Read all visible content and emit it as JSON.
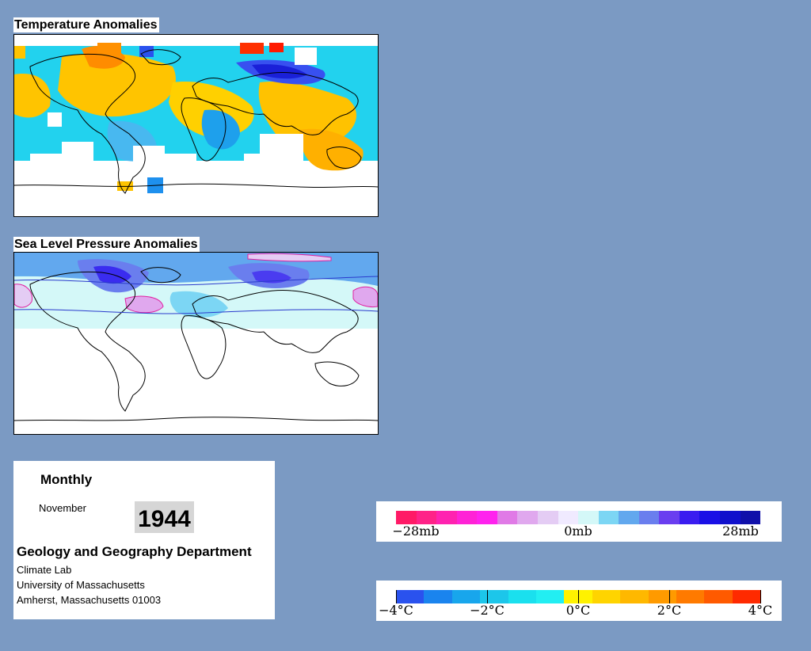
{
  "temperature_map": {
    "title": "Temperature Anomalies"
  },
  "pressure_map": {
    "title": "Sea Level Pressure Anomalies"
  },
  "info": {
    "period": "Monthly",
    "month": "November",
    "year": "1944",
    "department": "Geology and Geography Department",
    "lab": "Climate Lab",
    "university": "University of Massachusetts",
    "address": "Amherst, Massachusetts 01003"
  },
  "pressure_legend": {
    "labels": [
      "−28mb",
      "0mb",
      "28mb"
    ],
    "colors": [
      "#ff1a66",
      "#ff2288",
      "#ff22b0",
      "#ff22d6",
      "#ff22ee",
      "#e07ae6",
      "#e0a8ee",
      "#e4ccf4",
      "#f0eaff",
      "#d4f8f8",
      "#7cd6f4",
      "#62a8ee",
      "#6a7eee",
      "#6a3ef0",
      "#3a1cf0",
      "#1a10e6",
      "#1010cc",
      "#1010aa"
    ]
  },
  "temperature_legend": {
    "labels": [
      "−4°C",
      "−2°C",
      "0°C",
      "2°C",
      "4°C"
    ],
    "colors": [
      "#2a52ee",
      "#1a84ee",
      "#18a6ec",
      "#1cc6ea",
      "#1ae0ee",
      "#22eef2",
      "#fff200",
      "#ffd400",
      "#ffb800",
      "#ff9a00",
      "#ff7a00",
      "#ff5a00",
      "#ff2a00"
    ]
  }
}
